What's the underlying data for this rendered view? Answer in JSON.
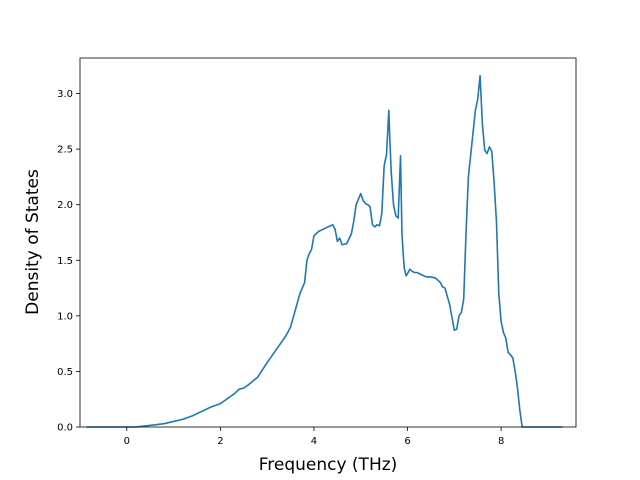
{
  "colors": {
    "series": "#1f77b4",
    "axes": "#000000",
    "background": "#ffffff"
  },
  "chart_data": {
    "type": "line",
    "title": "",
    "xlabel": "Frequency (THz)",
    "ylabel": "Density of States",
    "xlim": [
      -1.0,
      9.6
    ],
    "ylim": [
      0.0,
      3.32
    ],
    "xticks": [
      0,
      2,
      4,
      6,
      8
    ],
    "yticks": [
      0.0,
      0.5,
      1.0,
      1.5,
      2.0,
      2.5,
      3.0
    ],
    "xtick_labels": [
      "0",
      "2",
      "4",
      "6",
      "8"
    ],
    "ytick_labels": [
      "0.0",
      "0.5",
      "1.0",
      "1.5",
      "2.0",
      "2.5",
      "3.0"
    ],
    "grid": false,
    "legend": "none",
    "series": [
      {
        "x": [
          -0.85,
          -0.6,
          -0.3,
          0.0,
          0.2,
          0.4,
          0.6,
          0.8,
          1.0,
          1.2,
          1.4,
          1.6,
          1.8,
          2.0,
          2.2,
          2.3,
          2.4,
          2.5,
          2.6,
          2.8,
          3.0,
          3.2,
          3.4,
          3.5,
          3.6,
          3.7,
          3.8,
          3.85,
          3.9,
          3.95,
          4.0,
          4.1,
          4.2,
          4.3,
          4.4,
          4.45,
          4.5,
          4.55,
          4.6,
          4.7,
          4.8,
          4.85,
          4.9,
          4.95,
          5.0,
          5.05,
          5.1,
          5.15,
          5.2,
          5.25,
          5.3,
          5.35,
          5.4,
          5.45,
          5.5,
          5.55,
          5.6,
          5.62,
          5.65,
          5.7,
          5.75,
          5.8,
          5.85,
          5.88,
          5.9,
          5.93,
          5.97,
          6.0,
          6.05,
          6.1,
          6.15,
          6.2,
          6.3,
          6.4,
          6.5,
          6.6,
          6.7,
          6.75,
          6.8,
          6.9,
          7.0,
          7.05,
          7.1,
          7.15,
          7.2,
          7.25,
          7.3,
          7.35,
          7.4,
          7.45,
          7.5,
          7.55,
          7.6,
          7.65,
          7.7,
          7.75,
          7.8,
          7.85,
          7.9,
          7.95,
          8.0,
          8.05,
          8.1,
          8.15,
          8.2,
          8.25,
          8.3,
          8.35,
          8.4,
          8.45,
          8.5,
          8.6,
          8.8,
          9.0,
          9.3
        ],
        "y": [
          0.0,
          0.0,
          0.0,
          0.0,
          0.0,
          0.01,
          0.02,
          0.03,
          0.05,
          0.07,
          0.1,
          0.14,
          0.18,
          0.21,
          0.27,
          0.3,
          0.34,
          0.35,
          0.38,
          0.45,
          0.58,
          0.7,
          0.82,
          0.9,
          1.05,
          1.2,
          1.3,
          1.5,
          1.56,
          1.6,
          1.72,
          1.76,
          1.78,
          1.8,
          1.82,
          1.78,
          1.67,
          1.7,
          1.64,
          1.65,
          1.74,
          1.85,
          2.0,
          2.05,
          2.1,
          2.04,
          2.01,
          2.0,
          1.98,
          1.82,
          1.8,
          1.82,
          1.81,
          1.92,
          2.35,
          2.45,
          2.85,
          2.6,
          2.3,
          2.0,
          1.9,
          1.88,
          2.44,
          1.75,
          1.6,
          1.43,
          1.36,
          1.38,
          1.42,
          1.4,
          1.39,
          1.39,
          1.37,
          1.35,
          1.35,
          1.34,
          1.3,
          1.26,
          1.25,
          1.1,
          0.87,
          0.88,
          1.0,
          1.03,
          1.15,
          1.75,
          2.25,
          2.45,
          2.65,
          2.85,
          2.95,
          3.16,
          2.72,
          2.49,
          2.46,
          2.52,
          2.48,
          2.2,
          1.85,
          1.2,
          0.95,
          0.85,
          0.8,
          0.67,
          0.65,
          0.62,
          0.5,
          0.35,
          0.15,
          0.0,
          0.0,
          0.0,
          0.0,
          0.0,
          0.0
        ]
      }
    ]
  }
}
